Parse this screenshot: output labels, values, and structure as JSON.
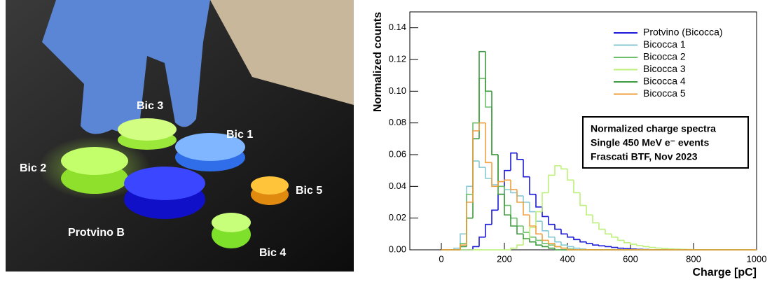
{
  "photo": {
    "labels": [
      "Bic 3",
      "Bic 1",
      "Bic 2",
      "Bic 5",
      "Protvino B",
      "Bic 4"
    ]
  },
  "chart_data": {
    "type": "histogram",
    "x_label": "Charge [pC]",
    "y_label": "Normalized counts",
    "annotations": [
      "Normalized charge spectra",
      "Single 450 MeV e⁻ events",
      "Frascati BTF, Nov 2023"
    ],
    "xlim": [
      -100,
      1000
    ],
    "xticks": [
      0,
      200,
      400,
      600,
      800,
      1000
    ],
    "ylim": [
      0,
      0.15
    ],
    "yticks": [
      {
        "value": 0,
        "label": "0.00"
      },
      0.02,
      0.04,
      0.06,
      0.08,
      {
        "value": 0.1,
        "label": "0.10"
      },
      0.12,
      0.14
    ],
    "legend": "upper right",
    "bins": [
      0,
      20,
      40,
      60,
      80,
      100,
      120,
      140,
      160,
      180,
      200,
      220,
      240,
      260,
      280,
      300,
      320,
      340,
      360,
      380,
      400,
      420,
      440,
      460,
      480,
      500,
      520,
      540,
      560,
      580,
      600,
      620,
      640,
      660,
      680,
      700,
      720,
      740,
      760,
      780,
      800,
      820,
      840,
      860,
      880,
      900,
      920,
      940,
      960,
      980,
      1000
    ],
    "series": [
      {
        "name": "Protvino (Bicocca)",
        "color": "#1a1ad8",
        "values": [
          0,
          0,
          0,
          0,
          0,
          0.002,
          0.008,
          0.016,
          0.025,
          0.035,
          0.05,
          0.061,
          0.057,
          0.046,
          0.035,
          0.027,
          0.021,
          0.016,
          0.013,
          0.01,
          0.008,
          0.0065,
          0.005,
          0.004,
          0.003,
          0.0025,
          0.002,
          0.0015,
          0.001,
          0.0007,
          0.0005,
          0.0003,
          0.0002,
          0.0001,
          0,
          0,
          0,
          0,
          0,
          0,
          0,
          0,
          0,
          0,
          0,
          0,
          0,
          0,
          0,
          0
        ]
      },
      {
        "name": "Bicocca 1",
        "color": "#86c9d3",
        "values": [
          0,
          0,
          0.001,
          0.01,
          0.04,
          0.056,
          0.052,
          0.045,
          0.041,
          0.04,
          0.038,
          0.036,
          0.034,
          0.03,
          0.024,
          0.018,
          0.012,
          0.008,
          0.005,
          0.003,
          0.002,
          0.001,
          0.0005,
          0,
          0,
          0,
          0,
          0,
          0,
          0,
          0,
          0,
          0,
          0,
          0,
          0,
          0,
          0,
          0,
          0,
          0,
          0,
          0,
          0,
          0,
          0,
          0,
          0,
          0,
          0
        ]
      },
      {
        "name": "Bicocca 2",
        "color": "#6cc06c",
        "values": [
          0,
          0,
          0,
          0.004,
          0.035,
          0.08,
          0.108,
          0.09,
          0.06,
          0.04,
          0.028,
          0.02,
          0.015,
          0.011,
          0.008,
          0.006,
          0.004,
          0.003,
          0.002,
          0.001,
          0.0005,
          0,
          0,
          0,
          0,
          0,
          0,
          0,
          0,
          0,
          0,
          0,
          0,
          0,
          0,
          0,
          0,
          0,
          0,
          0,
          0,
          0,
          0,
          0,
          0,
          0,
          0,
          0,
          0,
          0
        ]
      },
      {
        "name": "Bicocca 3",
        "color": "#bdf07a",
        "values": [
          0,
          0,
          0,
          0,
          0,
          0,
          0,
          0,
          0,
          0,
          0,
          0.001,
          0.003,
          0.007,
          0.014,
          0.024,
          0.036,
          0.047,
          0.053,
          0.051,
          0.044,
          0.036,
          0.028,
          0.022,
          0.017,
          0.013,
          0.01,
          0.008,
          0.006,
          0.0045,
          0.0035,
          0.0027,
          0.002,
          0.0015,
          0.0011,
          0.0008,
          0.0006,
          0.0004,
          0.0003,
          0.0002,
          0.0001,
          0,
          0,
          0,
          0,
          0,
          0,
          0,
          0,
          0
        ]
      },
      {
        "name": "Bicocca 4",
        "color": "#3e9a3e",
        "values": [
          0,
          0,
          0,
          0.002,
          0.02,
          0.07,
          0.125,
          0.1,
          0.06,
          0.035,
          0.022,
          0.015,
          0.01,
          0.007,
          0.005,
          0.003,
          0.002,
          0.001,
          0,
          0,
          0,
          0,
          0,
          0,
          0,
          0,
          0,
          0,
          0,
          0,
          0,
          0,
          0,
          0,
          0,
          0,
          0,
          0,
          0,
          0,
          0,
          0,
          0,
          0,
          0,
          0,
          0,
          0,
          0,
          0
        ]
      },
      {
        "name": "Bicocca 5",
        "color": "#f0a040",
        "values": [
          0,
          0,
          0,
          0.003,
          0.03,
          0.075,
          0.08,
          0.055,
          0.04,
          0.043,
          0.044,
          0.038,
          0.03,
          0.022,
          0.015,
          0.01,
          0.006,
          0.004,
          0.002,
          0.001,
          0,
          0,
          0,
          0,
          0,
          0,
          0,
          0,
          0,
          0,
          0,
          0,
          0,
          0,
          0,
          0,
          0,
          0,
          0,
          0,
          0,
          0,
          0,
          0,
          0,
          0,
          0,
          0,
          0,
          0
        ]
      }
    ]
  }
}
